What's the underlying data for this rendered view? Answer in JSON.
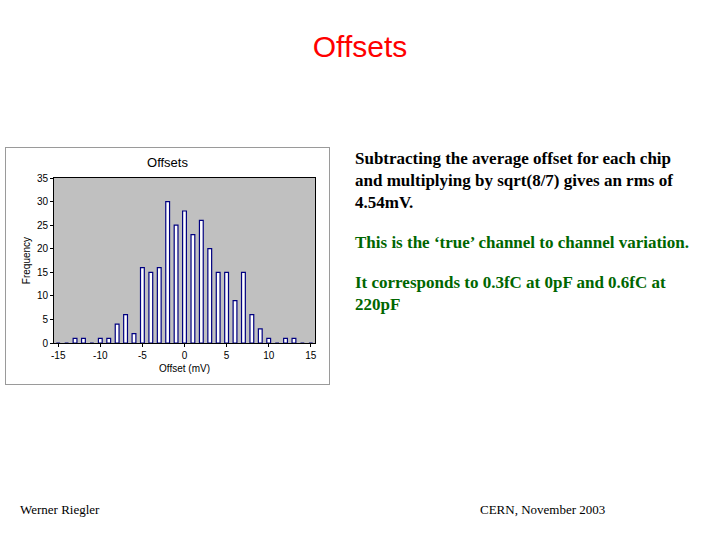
{
  "slide": {
    "title": "Offsets",
    "paragraphs": [
      "Subtracting the average offset for each chip and multiplying by sqrt(8/7) gives an rms of 4.54mV.",
      "This is the ‘true’ channel to channel variation.",
      "It corresponds to 0.3fC at 0pF and 0.6fC at 220pF"
    ],
    "footer_left": "Werner Riegler",
    "footer_right": "CERN, November 2003"
  },
  "chart_data": {
    "type": "histogram",
    "title": "Offsets",
    "x_label": "Offset (mV)",
    "y_label": "Frequency",
    "bins": [
      -15.5,
      -14.5,
      -13.5,
      -12.5,
      -11.5,
      -10.5,
      -9.5,
      -8.5,
      -7.5,
      -6.5,
      -5.5,
      -4.5,
      -3.5,
      -2.5,
      -1.5,
      -0.5,
      0.5,
      1.5,
      2.5,
      3.5,
      4.5,
      5.5,
      6.5,
      7.5,
      8.5,
      9.5,
      10.5,
      11.5,
      12.5,
      13.5,
      14.5,
      15.5
    ],
    "values": [
      0,
      0,
      1,
      1,
      0,
      1,
      1,
      4,
      6,
      2,
      16,
      15,
      16,
      30,
      25,
      28,
      23,
      26,
      20,
      15,
      15,
      9,
      15,
      6,
      3,
      1,
      0,
      1,
      1,
      0,
      0
    ],
    "color": "#000080",
    "xlim": [
      -15.5,
      15.5
    ],
    "xticks": [
      -15,
      -10,
      -5,
      0,
      5,
      10,
      15
    ],
    "ylim": [
      0,
      35
    ],
    "yticks": [
      0,
      5,
      10,
      15,
      20,
      25,
      30,
      35
    ],
    "grid": false
  }
}
